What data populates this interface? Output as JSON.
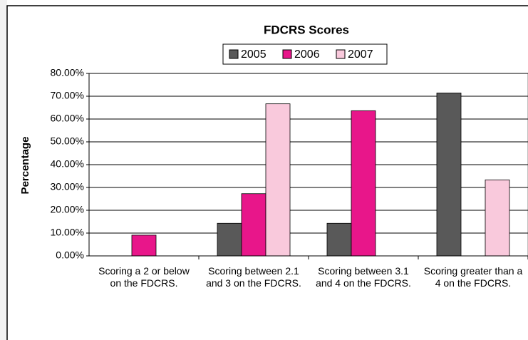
{
  "chart_data": {
    "type": "bar",
    "title": "FDCRS Scores",
    "y_label": "Percentage",
    "categories": [
      "Scoring a 2 or below on the FDCRS.",
      "Scoring between 2.1 and 3 on the FDCRS.",
      "Scoring between 3.1 and 4 on the FDCRS.",
      "Scoring greater than a 4 on the FDCRS."
    ],
    "series": [
      {
        "name": "2005",
        "color": "#595959",
        "values": [
          0,
          14.29,
          14.29,
          71.43
        ]
      },
      {
        "name": "2006",
        "color": "#e8168a",
        "values": [
          9.09,
          27.27,
          63.64,
          0
        ]
      },
      {
        "name": "2007",
        "color": "#f9c9dc",
        "values": [
          0,
          66.67,
          0,
          33.33
        ]
      }
    ],
    "ylim": [
      0,
      80
    ],
    "yticks": [
      {
        "value": 0,
        "label": "0.00%"
      },
      {
        "value": 10,
        "label": "10.00%"
      },
      {
        "value": 20,
        "label": "20.00%"
      },
      {
        "value": 30,
        "label": "30.00%"
      },
      {
        "value": 40,
        "label": "40.00%"
      },
      {
        "value": 50,
        "label": "50.00%"
      },
      {
        "value": 60,
        "label": "60.00%"
      },
      {
        "value": 70,
        "label": "70.00%"
      },
      {
        "value": 80,
        "label": "80.00%"
      }
    ],
    "grid": true,
    "legend": "top"
  }
}
